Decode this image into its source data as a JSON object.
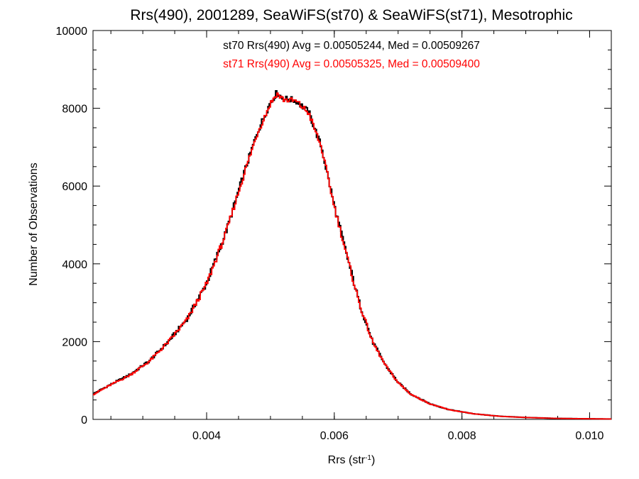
{
  "chart_data": {
    "type": "histogram-step",
    "title": "Rrs(490), 2001289, SeaWiFS(st70) & SeaWiFS(st71), Mesotrophic",
    "xlabel": "Rrs (str",
    "xlabel_sup": "-1",
    "xlabel_close": ")",
    "ylabel": "Number of Observations",
    "xlim": [
      0.00222,
      0.01034
    ],
    "ylim": [
      0,
      10000
    ],
    "x_ticks": [
      0.004,
      0.006,
      0.008,
      0.01
    ],
    "x_tick_labels": [
      "0.004",
      "0.006",
      "0.008",
      "0.010"
    ],
    "y_ticks": [
      0,
      2000,
      4000,
      6000,
      8000,
      10000
    ],
    "y_tick_labels": [
      "0",
      "2000",
      "4000",
      "6000",
      "8000",
      "10000"
    ],
    "annotations": [
      {
        "text": "st70 Rrs(490) Avg = 0.00505244, Med = 0.00509267",
        "color": "#000000"
      },
      {
        "text": "st71 Rrs(490) Avg = 0.00505325, Med = 0.00509400",
        "color": "#ff0000"
      }
    ],
    "bin_width": 2e-05,
    "series": [
      {
        "label": "st70",
        "color": "#000000",
        "x": [
          0.00222,
          0.0025,
          0.0028,
          0.0031,
          0.0034,
          0.0037,
          0.004,
          0.0043,
          0.0046,
          0.0048,
          0.005,
          0.0051,
          0.0052,
          0.0054,
          0.0056,
          0.0058,
          0.006,
          0.0062,
          0.0064,
          0.0066,
          0.0068,
          0.007,
          0.0072,
          0.0075,
          0.0078,
          0.0082,
          0.0086,
          0.009,
          0.0095,
          0.01034
        ],
        "y": [
          650,
          900,
          1150,
          1500,
          2000,
          2600,
          3500,
          4800,
          6400,
          7400,
          8150,
          8400,
          8250,
          8200,
          7900,
          7000,
          5500,
          4200,
          2950,
          2000,
          1400,
          950,
          650,
          400,
          250,
          140,
          80,
          50,
          25,
          10
        ]
      },
      {
        "label": "st71",
        "color": "#ff0000",
        "x": [
          0.00222,
          0.0025,
          0.0028,
          0.0031,
          0.0034,
          0.0037,
          0.004,
          0.0043,
          0.0046,
          0.0048,
          0.005,
          0.0051,
          0.0052,
          0.0054,
          0.0056,
          0.0058,
          0.006,
          0.0062,
          0.0064,
          0.0066,
          0.0068,
          0.007,
          0.0072,
          0.0075,
          0.0078,
          0.0082,
          0.0086,
          0.009,
          0.0095,
          0.01034
        ],
        "y": [
          640,
          890,
          1140,
          1490,
          1990,
          2580,
          3480,
          4780,
          6380,
          7380,
          8120,
          8380,
          8230,
          8180,
          7880,
          6980,
          5480,
          4180,
          2940,
          1990,
          1390,
          945,
          645,
          398,
          248,
          139,
          79,
          49,
          25,
          10
        ]
      }
    ]
  }
}
